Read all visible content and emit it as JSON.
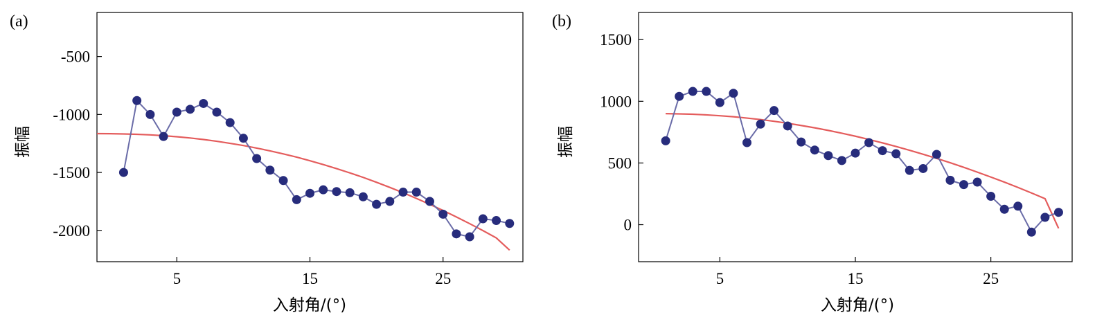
{
  "chart_data": [
    {
      "type": "line",
      "panel_label": "(a)",
      "xlabel": "入射角/(°)",
      "ylabel": "振幅",
      "xlim": [
        -1,
        31
      ],
      "ylim": [
        -2270,
        -120
      ],
      "xticks": [
        5,
        15,
        25
      ],
      "yticks": [
        -2000,
        -1500,
        -1000,
        -500
      ],
      "colors": {
        "points": "#272c7c",
        "line": "#6a6ca8",
        "fit": "#e45c5c"
      },
      "series": [
        {
          "x": [
            1,
            2,
            3,
            4,
            5,
            6,
            7,
            8,
            9,
            10,
            11,
            12,
            13,
            14,
            15,
            16,
            17,
            18,
            19,
            20,
            21,
            22,
            23,
            24,
            25,
            26,
            27,
            28,
            29,
            30
          ],
          "values": [
            -1500,
            -880,
            -1000,
            -1190,
            -980,
            -955,
            -905,
            -980,
            -1070,
            -1205,
            -1380,
            -1480,
            -1570,
            -1735,
            -1680,
            -1650,
            -1665,
            -1675,
            -1710,
            -1775,
            -1750,
            -1670,
            -1670,
            -1750,
            -1860,
            -2030,
            -2055,
            -1900,
            -1915,
            -1940
          ]
        }
      ],
      "fit": {
        "x": [
          -1,
          0,
          1,
          2,
          3,
          4,
          5,
          6,
          7,
          8,
          9,
          10,
          11,
          12,
          13,
          14,
          15,
          16,
          17,
          18,
          19,
          20,
          21,
          22,
          23,
          24,
          25,
          26,
          27,
          28,
          29,
          30
        ],
        "values": [
          -1165,
          -1166,
          -1168,
          -1171,
          -1176,
          -1183,
          -1192,
          -1203,
          -1216,
          -1231,
          -1249,
          -1268,
          -1290,
          -1314,
          -1340,
          -1368,
          -1399,
          -1432,
          -1467,
          -1504,
          -1543,
          -1585,
          -1629,
          -1675,
          -1724,
          -1775,
          -1828,
          -1884,
          -1942,
          -2002,
          -2065,
          -2170
        ]
      }
    },
    {
      "type": "line",
      "panel_label": "(b)",
      "xlabel": "入射角/(°)",
      "ylabel": "振幅",
      "xlim": [
        -1,
        31
      ],
      "ylim": [
        -300,
        1720
      ],
      "xticks": [
        5,
        15,
        25
      ],
      "yticks": [
        0,
        500,
        1000,
        1500
      ],
      "colors": {
        "points": "#272c7c",
        "line": "#6a6ca8",
        "fit": "#e45c5c"
      },
      "series": [
        {
          "x": [
            1,
            2,
            3,
            4,
            5,
            6,
            7,
            8,
            9,
            10,
            11,
            12,
            13,
            14,
            15,
            16,
            17,
            18,
            19,
            20,
            21,
            22,
            23,
            24,
            25,
            26,
            27,
            28,
            29,
            30
          ],
          "values": [
            680,
            1040,
            1080,
            1080,
            990,
            1065,
            665,
            815,
            925,
            800,
            670,
            605,
            560,
            520,
            580,
            665,
            600,
            575,
            440,
            455,
            570,
            360,
            325,
            345,
            230,
            125,
            150,
            -60,
            60,
            100
          ]
        }
      ],
      "fit": {
        "x": [
          1,
          2,
          3,
          4,
          5,
          6,
          7,
          8,
          9,
          10,
          11,
          12,
          13,
          14,
          15,
          16,
          17,
          18,
          19,
          20,
          21,
          22,
          23,
          24,
          25,
          26,
          27,
          28,
          29,
          30
        ],
        "values": [
          900,
          898,
          895,
          890,
          883,
          875,
          864,
          852,
          838,
          822,
          804,
          785,
          764,
          741,
          717,
          691,
          663,
          634,
          603,
          571,
          537,
          502,
          465,
          426,
          386,
          345,
          302,
          257,
          211,
          -30
        ]
      }
    }
  ]
}
